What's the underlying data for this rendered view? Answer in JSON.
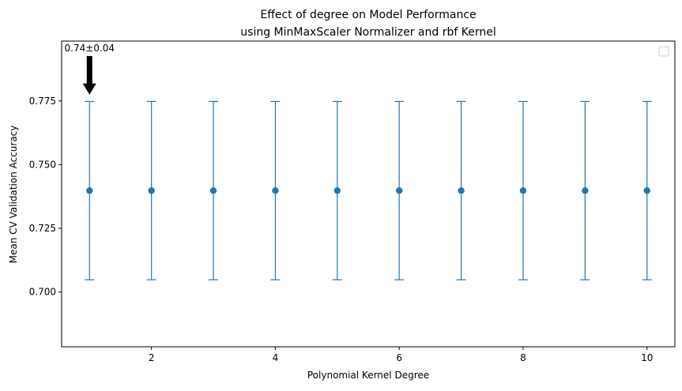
{
  "chart_data": {
    "type": "scatter",
    "title_line1": "Effect of degree on Model Performance",
    "title_line2": "using MinMaxScaler Normalizer and rbf Kernel",
    "xlabel": "Polynomial Kernel Degree",
    "ylabel": "Mean CV Validation Accuracy",
    "xlim": [
      0.55,
      10.45
    ],
    "ylim": [
      0.6785,
      0.7985
    ],
    "xticks": [
      2,
      4,
      6,
      8,
      10
    ],
    "yticks": [
      0.7,
      0.725,
      0.75,
      0.775
    ],
    "ytick_labels": [
      "0.700",
      "0.725",
      "0.750",
      "0.775"
    ],
    "grid": false,
    "legend": "top-right",
    "series": [
      {
        "x": [
          1,
          2,
          3,
          4,
          5,
          6,
          7,
          8,
          9,
          10
        ],
        "y": [
          0.7398,
          0.7398,
          0.7398,
          0.7398,
          0.7398,
          0.7398,
          0.7398,
          0.7398,
          0.7398,
          0.7398
        ],
        "yerr": [
          0.035,
          0.035,
          0.035,
          0.035,
          0.035,
          0.035,
          0.035,
          0.035,
          0.035,
          0.035
        ],
        "color": "#1f77b4"
      }
    ],
    "annotation": {
      "text": "0.74±0.04",
      "x": 1,
      "y": 0.7775,
      "text_y": 0.7945
    }
  }
}
